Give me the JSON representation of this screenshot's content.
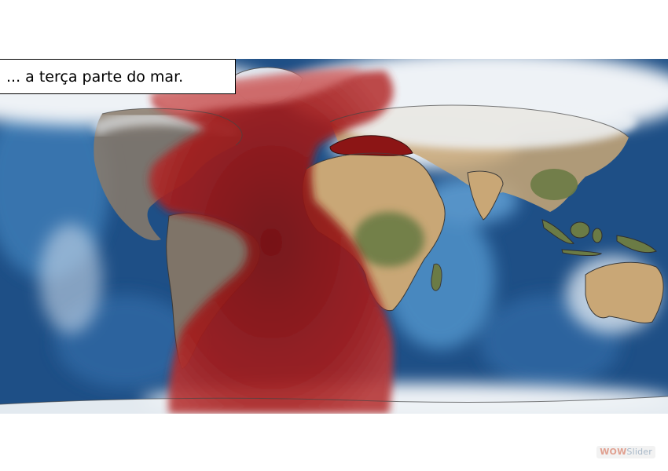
{
  "slide": {
    "caption": "... a terça parte do mar."
  },
  "branding": {
    "part1": "WOW",
    "part2": "Slider"
  },
  "colors": {
    "ocean_deep": "#1e4f86",
    "ocean_light": "#4d8fc6",
    "clouds": "#eef2f6",
    "land_tan": "#c9a776",
    "land_brown": "#8a7a6a",
    "forest": "#6b7b45",
    "blood_red": "#9b1c1c"
  }
}
